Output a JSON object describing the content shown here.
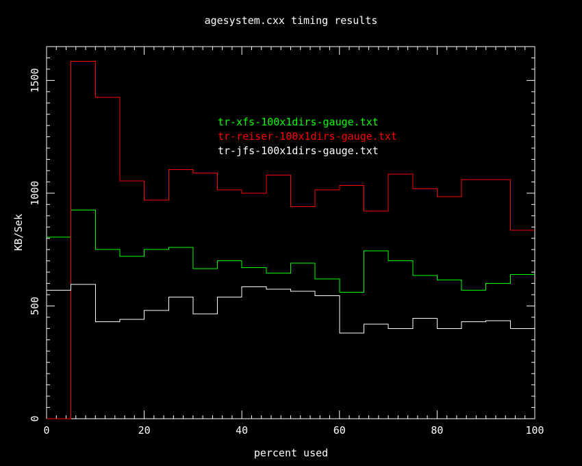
{
  "colors": {
    "background": "#000000",
    "axes": "#ffffff"
  },
  "chart_data": {
    "type": "line",
    "step": true,
    "title": "agesystem.cxx timing results",
    "xlabel": "percent used",
    "ylabel": "KB/Sek",
    "xlim": [
      0,
      100
    ],
    "ylim": [
      0,
      1650
    ],
    "xticks": [
      0,
      20,
      40,
      60,
      80,
      100
    ],
    "yticks": [
      0,
      500,
      1000,
      1500
    ],
    "x_minor_step": 2,
    "y_minor_step": 50,
    "grid": false,
    "legend_position": "upper-middle",
    "x": [
      0,
      5,
      10,
      15,
      20,
      25,
      30,
      35,
      40,
      45,
      50,
      55,
      60,
      65,
      70,
      75,
      80,
      85,
      90,
      95
    ],
    "series": [
      {
        "name": "tr-xfs-100x1dirs-gauge.txt",
        "color": "#00ff00",
        "values": [
          805,
          925,
          750,
          720,
          750,
          760,
          665,
          700,
          670,
          645,
          690,
          620,
          560,
          745,
          700,
          635,
          615,
          570,
          600,
          640
        ]
      },
      {
        "name": "tr-reiser-100x1dirs-gauge.txt",
        "color": "#ff0000",
        "values": [
          0,
          1585,
          1425,
          1055,
          970,
          1105,
          1090,
          1015,
          1000,
          1080,
          940,
          1015,
          1035,
          920,
          1085,
          1020,
          985,
          1060,
          1060,
          835
        ]
      },
      {
        "name": "tr-jfs-100x1dirs-gauge.txt",
        "color": "#ffffff",
        "values": [
          570,
          595,
          430,
          440,
          480,
          540,
          465,
          540,
          585,
          575,
          565,
          545,
          380,
          420,
          400,
          445,
          400,
          430,
          435,
          400
        ]
      }
    ]
  }
}
